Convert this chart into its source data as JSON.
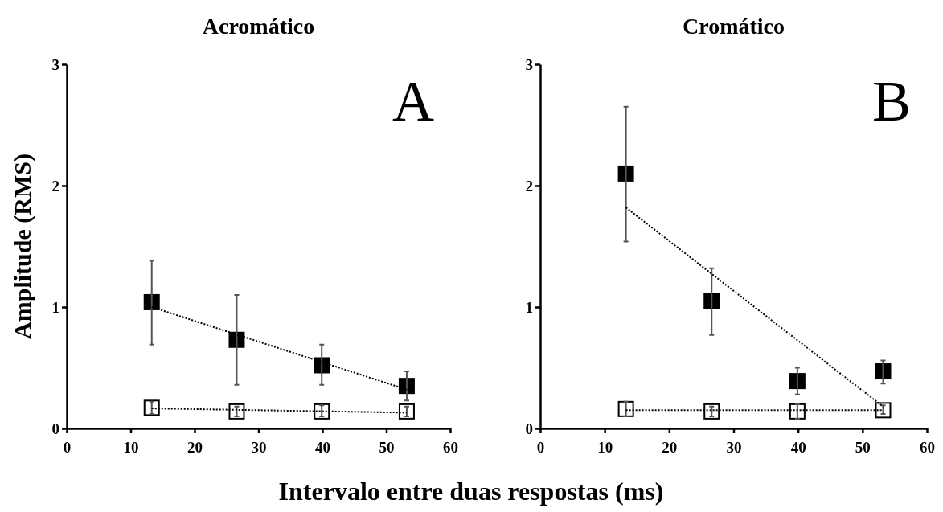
{
  "chart_data": [
    {
      "type": "scatter",
      "title": "Acromático",
      "ylabel": "Amplitude (RMS)",
      "xlabel": "Intervalo entre duas respostas (ms)",
      "annotations": [
        "A"
      ],
      "xlim": [
        0,
        60
      ],
      "xticks": [
        0,
        10,
        20,
        30,
        40,
        50,
        60
      ],
      "ylim": [
        0,
        3
      ],
      "yticks": [
        0,
        1,
        2,
        3
      ],
      "marker": "square",
      "grid": false,
      "series": [
        {
          "x": [
            13.3,
            53.2
          ],
          "values": [
            1.0,
            0.32
          ],
          "type": "line",
          "line_style": "dotted",
          "marker": "none",
          "color": "#000000"
        },
        {
          "x": [
            13.3,
            53.2
          ],
          "values": [
            0.165,
            0.13
          ],
          "type": "line",
          "line_style": "dotted",
          "marker": "none",
          "color": "#000000"
        },
        {
          "x": [
            13.3,
            26.6,
            39.9,
            53.2
          ],
          "values": [
            1.04,
            0.73,
            0.52,
            0.35
          ],
          "color": "#000000",
          "errors": [
            [
              0.69,
              1.38
            ],
            [
              0.36,
              1.1
            ],
            [
              0.36,
              0.69
            ],
            [
              0.23,
              0.47
            ]
          ]
        },
        {
          "x": [
            13.3,
            26.6,
            39.9,
            53.2
          ],
          "values": [
            0.17,
            0.14,
            0.14,
            0.14
          ],
          "color": "#ffffff",
          "errors": [
            [
              0.12,
              0.22
            ],
            [
              0.1,
              0.18
            ],
            [
              0.1,
              0.19
            ],
            [
              0.1,
              0.18
            ]
          ]
        }
      ]
    },
    {
      "type": "scatter",
      "title": "Cromático",
      "annotations": [
        "B"
      ],
      "xlim": [
        0,
        60
      ],
      "xticks": [
        0,
        10,
        20,
        30,
        40,
        50,
        60
      ],
      "ylim": [
        0,
        3
      ],
      "yticks": [
        0,
        1,
        2,
        3
      ],
      "marker": "square",
      "grid": false,
      "series": [
        {
          "x": [
            13.3,
            53.2
          ],
          "values": [
            1.82,
            0.18
          ],
          "type": "line",
          "line_style": "dotted",
          "marker": "none",
          "color": "#000000"
        },
        {
          "x": [
            13.3,
            53.2
          ],
          "values": [
            0.15,
            0.15
          ],
          "type": "line",
          "line_style": "dotted",
          "marker": "none",
          "color": "#000000"
        },
        {
          "x": [
            13.3,
            26.6,
            39.9,
            53.2
          ],
          "values": [
            2.1,
            1.05,
            0.39,
            0.47
          ],
          "color": "#000000",
          "errors": [
            [
              1.54,
              2.65
            ],
            [
              0.77,
              1.32
            ],
            [
              0.28,
              0.5
            ],
            [
              0.37,
              0.56
            ]
          ]
        },
        {
          "x": [
            13.3,
            26.6,
            39.9,
            53.2
          ],
          "values": [
            0.16,
            0.14,
            0.14,
            0.15
          ],
          "color": "#ffffff",
          "errors": [
            [
              0.1,
              0.22
            ],
            [
              0.1,
              0.18
            ],
            [
              0.08,
              0.2
            ],
            [
              0.12,
              0.19
            ]
          ]
        }
      ]
    }
  ]
}
